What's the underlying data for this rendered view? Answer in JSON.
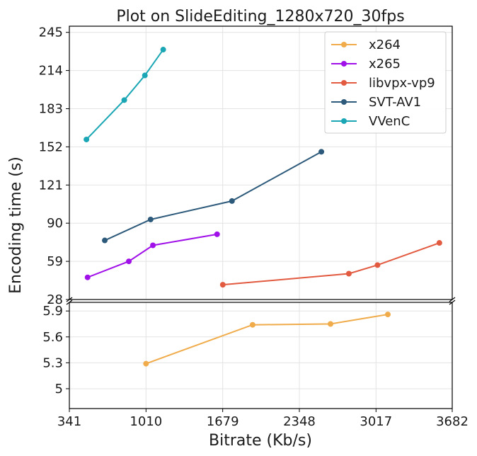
{
  "chart_data": {
    "type": "line",
    "title": "Plot on SlideEditing_1280x720_30fps",
    "xlabel": "Bitrate (Kb/s)",
    "ylabel": "Encoding time (s)",
    "xlim": [
      341,
      3682
    ],
    "x_ticks": [
      "341",
      "1010",
      "1679",
      "2348",
      "3017",
      "3682"
    ],
    "broken_y_axis": true,
    "upper_panel": {
      "ylim": [
        28,
        250
      ],
      "y_ticks": [
        "28",
        "59",
        "90",
        "121",
        "152",
        "183",
        "214",
        "245"
      ]
    },
    "lower_panel": {
      "ylim": [
        4.77,
        6.0
      ],
      "y_ticks": [
        "5",
        "5.3",
        "5.6",
        "5.9"
      ]
    },
    "grid": true,
    "legend_position": "top-right",
    "series": [
      {
        "name": "x264",
        "color": "#f0ab4a",
        "panel": "lower",
        "x": [
          1010,
          1940,
          2620,
          3120
        ],
        "y": [
          5.29,
          5.74,
          5.75,
          5.86
        ]
      },
      {
        "name": "x265",
        "color": "#a010e8",
        "panel": "upper",
        "x": [
          500,
          860,
          1070,
          1630
        ],
        "y": [
          46,
          59,
          72,
          81
        ]
      },
      {
        "name": "libvpx-vp9",
        "color": "#e25a40",
        "panel": "upper",
        "x": [
          1680,
          2780,
          3030,
          3570
        ],
        "y": [
          40,
          49,
          56,
          74
        ]
      },
      {
        "name": "SVT-AV1",
        "color": "#2d5a7b",
        "panel": "upper",
        "x": [
          650,
          1050,
          1760,
          2540
        ],
        "y": [
          76,
          93,
          108,
          148
        ]
      },
      {
        "name": "VVenC",
        "color": "#1aa6b4",
        "panel": "upper",
        "x": [
          490,
          820,
          1000,
          1160
        ],
        "y": [
          158,
          190,
          210,
          231
        ]
      }
    ]
  }
}
